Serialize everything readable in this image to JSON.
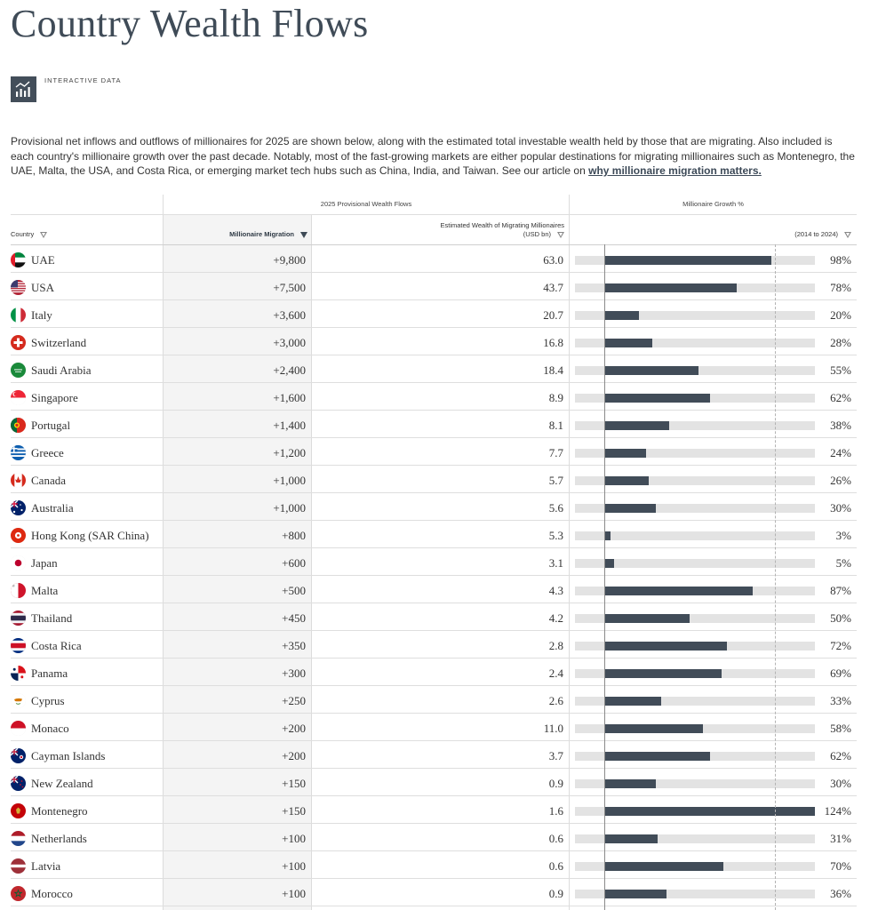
{
  "title": "Country Wealth Flows",
  "badge": {
    "label": "INTERACTIVE DATA",
    "icon": "chart-icon"
  },
  "intro": {
    "text": "Provisional net inflows and outflows of millionaires for 2025 are shown below, along with the estimated total investable wealth held by those that are migrating. Also included is each country's millionaire growth over the past decade. Notably, most of the fast-growing markets are either popular destinations for migrating millionaires such as Montenegro, the UAE, Malta, the USA, and Costa Rica, or emerging market tech hubs such as China, India, and Taiwan. See our article on ",
    "link": "why millionaire migration matters."
  },
  "table": {
    "group_flows": "2025 Provisional Wealth Flows",
    "group_growth": "Millionaire Growth %",
    "col_country": "Country",
    "col_migration": "Millionaire Migration",
    "col_wealth_line1": "Estimated Wealth of Migrating Millionaires",
    "col_wealth_line2": "(USD bn)",
    "col_growth": "(2014 to 2024)",
    "sort_column": "Millionaire Migration",
    "bar_color": "#414c58",
    "track_color": "#e3e3e3",
    "rows": [
      {
        "country": "UAE",
        "migration": "+9,800",
        "wealth": "63.0",
        "growth_label": "98%",
        "growth": 98
      },
      {
        "country": "USA",
        "migration": "+7,500",
        "wealth": "43.7",
        "growth_label": "78%",
        "growth": 78
      },
      {
        "country": "Italy",
        "migration": "+3,600",
        "wealth": "20.7",
        "growth_label": "20%",
        "growth": 20
      },
      {
        "country": "Switzerland",
        "migration": "+3,000",
        "wealth": "16.8",
        "growth_label": "28%",
        "growth": 28
      },
      {
        "country": "Saudi Arabia",
        "migration": "+2,400",
        "wealth": "18.4",
        "growth_label": "55%",
        "growth": 55
      },
      {
        "country": "Singapore",
        "migration": "+1,600",
        "wealth": "8.9",
        "growth_label": "62%",
        "growth": 62
      },
      {
        "country": "Portugal",
        "migration": "+1,400",
        "wealth": "8.1",
        "growth_label": "38%",
        "growth": 38
      },
      {
        "country": "Greece",
        "migration": "+1,200",
        "wealth": "7.7",
        "growth_label": "24%",
        "growth": 24
      },
      {
        "country": "Canada",
        "migration": "+1,000",
        "wealth": "5.7",
        "growth_label": "26%",
        "growth": 26
      },
      {
        "country": "Australia",
        "migration": "+1,000",
        "wealth": "5.6",
        "growth_label": "30%",
        "growth": 30
      },
      {
        "country": "Hong Kong (SAR China)",
        "migration": "+800",
        "wealth": "5.3",
        "growth_label": "3%",
        "growth": 3
      },
      {
        "country": "Japan",
        "migration": "+600",
        "wealth": "3.1",
        "growth_label": "5%",
        "growth": 5
      },
      {
        "country": "Malta",
        "migration": "+500",
        "wealth": "4.3",
        "growth_label": "87%",
        "growth": 87
      },
      {
        "country": "Thailand",
        "migration": "+450",
        "wealth": "4.2",
        "growth_label": "50%",
        "growth": 50
      },
      {
        "country": "Costa Rica",
        "migration": "+350",
        "wealth": "2.8",
        "growth_label": "72%",
        "growth": 72
      },
      {
        "country": "Panama",
        "migration": "+300",
        "wealth": "2.4",
        "growth_label": "69%",
        "growth": 69
      },
      {
        "country": "Cyprus",
        "migration": "+250",
        "wealth": "2.6",
        "growth_label": "33%",
        "growth": 33
      },
      {
        "country": "Monaco",
        "migration": "+200",
        "wealth": "11.0",
        "growth_label": "58%",
        "growth": 58
      },
      {
        "country": "Cayman Islands",
        "migration": "+200",
        "wealth": "3.7",
        "growth_label": "62%",
        "growth": 62
      },
      {
        "country": "New Zealand",
        "migration": "+150",
        "wealth": "0.9",
        "growth_label": "30%",
        "growth": 30
      },
      {
        "country": "Montenegro",
        "migration": "+150",
        "wealth": "1.6",
        "growth_label": "124%",
        "growth": 124
      },
      {
        "country": "Netherlands",
        "migration": "+100",
        "wealth": "0.6",
        "growth_label": "31%",
        "growth": 31
      },
      {
        "country": "Latvia",
        "migration": "+100",
        "wealth": "0.6",
        "growth_label": "70%",
        "growth": 70
      },
      {
        "country": "Morocco",
        "migration": "+100",
        "wealth": "0.9",
        "growth_label": "36%",
        "growth": 36
      }
    ]
  }
}
